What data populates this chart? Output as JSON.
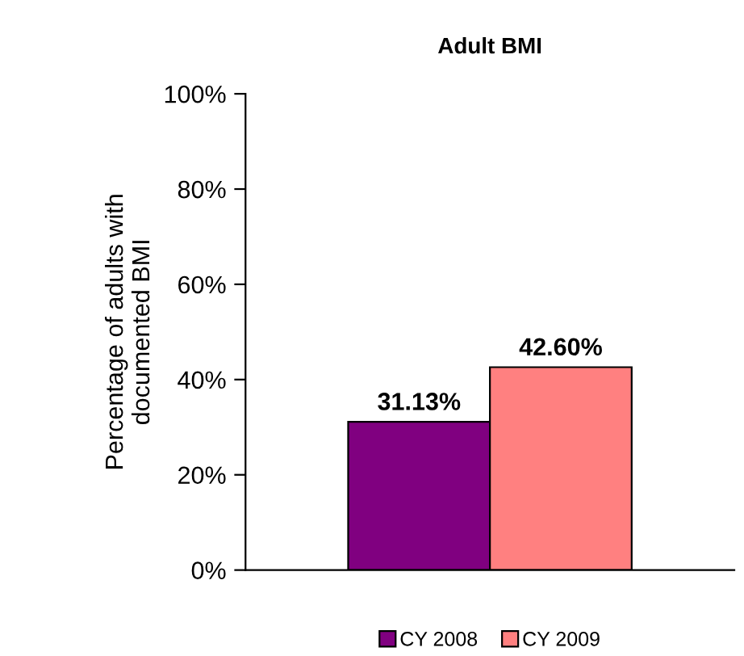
{
  "chart_data": {
    "type": "bar",
    "title": "Adult BMI",
    "ylabel": "Percentage of adults with\ndocumented BMI",
    "categories": [
      null
    ],
    "series": [
      {
        "name": "CY 2008",
        "color": "#800080",
        "values": [
          31.13
        ],
        "value_labels": [
          "31.13%"
        ]
      },
      {
        "name": "CY 2009",
        "color": "#ff8080",
        "values": [
          42.6
        ],
        "value_labels": [
          "42.60%"
        ]
      }
    ],
    "ylim": [
      0,
      100
    ],
    "yticks": [
      {
        "value": 0,
        "label": "0%"
      },
      {
        "value": 20,
        "label": "20%"
      },
      {
        "value": 40,
        "label": "40%"
      },
      {
        "value": 60,
        "label": "60%"
      },
      {
        "value": 80,
        "label": "80%"
      },
      {
        "value": 100,
        "label": "100%"
      }
    ],
    "grid": false,
    "legend": "bottom"
  }
}
